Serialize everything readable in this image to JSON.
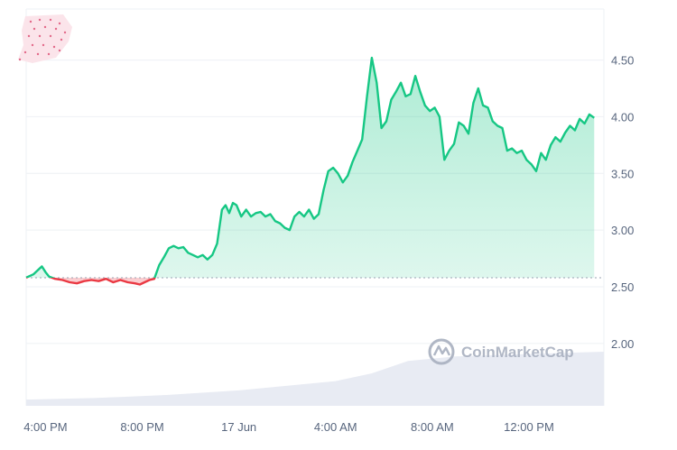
{
  "chart_data": {
    "type": "line",
    "x_axis_labels": [
      "4:00 PM",
      "8:00 PM",
      "17 Jun",
      "4:00 AM",
      "8:00 AM",
      "12:00 PM"
    ],
    "y_ticks": [
      "4.50",
      "4.00",
      "3.50",
      "3.00",
      "2.50",
      "2.00"
    ],
    "y_tick_values": [
      4.5,
      4.0,
      3.5,
      3.0,
      2.5,
      2.0
    ],
    "ylim": [
      1.45,
      4.95
    ],
    "xlim_hours": [
      -0.8,
      23.1
    ],
    "baseline": 2.58,
    "colors": {
      "up": "#16c784",
      "down": "#ea3943",
      "baseline": "#9aa3b2",
      "volume": "#e8ebf3"
    },
    "series": [
      {
        "values": [
          [
            -0.8,
            2.58
          ],
          [
            -0.5,
            2.61
          ],
          [
            -0.3,
            2.65
          ],
          [
            -0.15,
            2.68
          ],
          [
            0.0,
            2.63
          ],
          [
            0.15,
            2.59
          ],
          [
            0.4,
            2.57
          ],
          [
            0.7,
            2.56
          ],
          [
            1.0,
            2.54
          ],
          [
            1.3,
            2.53
          ],
          [
            1.6,
            2.55
          ],
          [
            1.9,
            2.56
          ],
          [
            2.2,
            2.55
          ],
          [
            2.5,
            2.57
          ],
          [
            2.8,
            2.54
          ],
          [
            3.1,
            2.56
          ],
          [
            3.4,
            2.54
          ],
          [
            3.7,
            2.53
          ],
          [
            3.9,
            2.52
          ],
          [
            4.1,
            2.54
          ],
          [
            4.3,
            2.56
          ],
          [
            4.5,
            2.57
          ],
          [
            4.7,
            2.69
          ],
          [
            4.9,
            2.76
          ],
          [
            5.1,
            2.84
          ],
          [
            5.3,
            2.86
          ],
          [
            5.5,
            2.84
          ],
          [
            5.7,
            2.85
          ],
          [
            5.9,
            2.8
          ],
          [
            6.1,
            2.78
          ],
          [
            6.3,
            2.76
          ],
          [
            6.5,
            2.78
          ],
          [
            6.7,
            2.74
          ],
          [
            6.9,
            2.78
          ],
          [
            7.1,
            2.88
          ],
          [
            7.3,
            3.18
          ],
          [
            7.45,
            3.22
          ],
          [
            7.6,
            3.15
          ],
          [
            7.75,
            3.24
          ],
          [
            7.9,
            3.22
          ],
          [
            8.1,
            3.12
          ],
          [
            8.3,
            3.18
          ],
          [
            8.5,
            3.12
          ],
          [
            8.7,
            3.15
          ],
          [
            8.9,
            3.16
          ],
          [
            9.1,
            3.12
          ],
          [
            9.3,
            3.14
          ],
          [
            9.5,
            3.08
          ],
          [
            9.7,
            3.06
          ],
          [
            9.9,
            3.02
          ],
          [
            10.1,
            3.0
          ],
          [
            10.3,
            3.12
          ],
          [
            10.5,
            3.16
          ],
          [
            10.7,
            3.12
          ],
          [
            10.9,
            3.18
          ],
          [
            11.1,
            3.1
          ],
          [
            11.3,
            3.14
          ],
          [
            11.5,
            3.35
          ],
          [
            11.7,
            3.52
          ],
          [
            11.9,
            3.55
          ],
          [
            12.1,
            3.5
          ],
          [
            12.3,
            3.42
          ],
          [
            12.5,
            3.48
          ],
          [
            12.7,
            3.6
          ],
          [
            12.9,
            3.7
          ],
          [
            13.1,
            3.8
          ],
          [
            13.3,
            4.18
          ],
          [
            13.5,
            4.52
          ],
          [
            13.7,
            4.3
          ],
          [
            13.9,
            3.9
          ],
          [
            14.1,
            3.96
          ],
          [
            14.3,
            4.15
          ],
          [
            14.5,
            4.22
          ],
          [
            14.7,
            4.3
          ],
          [
            14.9,
            4.18
          ],
          [
            15.1,
            4.2
          ],
          [
            15.3,
            4.36
          ],
          [
            15.5,
            4.22
          ],
          [
            15.7,
            4.1
          ],
          [
            15.9,
            4.05
          ],
          [
            16.1,
            4.08
          ],
          [
            16.3,
            4.0
          ],
          [
            16.5,
            3.62
          ],
          [
            16.7,
            3.7
          ],
          [
            16.9,
            3.76
          ],
          [
            17.1,
            3.95
          ],
          [
            17.3,
            3.92
          ],
          [
            17.5,
            3.85
          ],
          [
            17.7,
            4.12
          ],
          [
            17.9,
            4.25
          ],
          [
            18.1,
            4.1
          ],
          [
            18.3,
            4.08
          ],
          [
            18.5,
            3.96
          ],
          [
            18.7,
            3.92
          ],
          [
            18.9,
            3.9
          ],
          [
            19.1,
            3.7
          ],
          [
            19.3,
            3.72
          ],
          [
            19.5,
            3.68
          ],
          [
            19.7,
            3.7
          ],
          [
            19.9,
            3.62
          ],
          [
            20.1,
            3.58
          ],
          [
            20.3,
            3.52
          ],
          [
            20.5,
            3.68
          ],
          [
            20.7,
            3.62
          ],
          [
            20.9,
            3.75
          ],
          [
            21.1,
            3.82
          ],
          [
            21.3,
            3.78
          ],
          [
            21.5,
            3.86
          ],
          [
            21.7,
            3.92
          ],
          [
            21.9,
            3.88
          ],
          [
            22.1,
            3.98
          ],
          [
            22.3,
            3.94
          ],
          [
            22.5,
            4.02
          ],
          [
            22.7,
            3.99
          ]
        ]
      }
    ],
    "volume_series": [
      [
        -0.8,
        0.08
      ],
      [
        2,
        0.1
      ],
      [
        5,
        0.14
      ],
      [
        8,
        0.2
      ],
      [
        10,
        0.26
      ],
      [
        12,
        0.32
      ],
      [
        13.5,
        0.42
      ],
      [
        15,
        0.58
      ],
      [
        17,
        0.64
      ],
      [
        19,
        0.66
      ],
      [
        21,
        0.68
      ],
      [
        23.1,
        0.7
      ]
    ],
    "volume_max": 0.7
  },
  "watermark": {
    "text": "CoinMarketCap",
    "icon": "coinmarketcap-logo-icon"
  },
  "logo": {
    "icon": "coin-logo-icon"
  }
}
